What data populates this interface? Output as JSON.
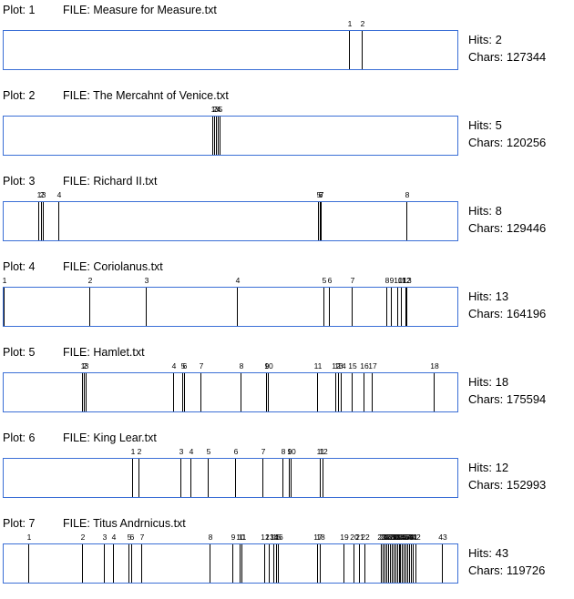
{
  "plots": [
    {
      "plot_label": "Plot: 1",
      "file_label": "FILE: Measure for Measure.txt",
      "hits": "Hits: 2",
      "chars": "Chars: 127344",
      "hit_positions": [
        0.764,
        0.792
      ],
      "tick_labels": [
        "1",
        "2"
      ]
    },
    {
      "plot_label": "Plot: 2",
      "file_label": "FILE: The Mercahnt of Venice.txt",
      "hits": "Hits: 5",
      "chars": "Chars: 120256",
      "hit_positions": [
        0.462,
        0.466,
        0.47,
        0.474,
        0.477
      ],
      "tick_labels": [
        "1",
        "2",
        "3",
        "4",
        "5"
      ]
    },
    {
      "plot_label": "Plot: 3",
      "file_label": "FILE: Richard II.txt",
      "hits": "Hits: 8",
      "chars": "Chars: 129446",
      "hit_positions": [
        0.076,
        0.082,
        0.086,
        0.12,
        0.696,
        0.699,
        0.702,
        0.892
      ],
      "tick_labels": [
        "1",
        "2",
        "3",
        "4",
        "5",
        "6",
        "7",
        "8"
      ]
    },
    {
      "plot_label": "Plot: 4",
      "file_label": "FILE: Coriolanus.txt",
      "hits": "Hits: 13",
      "chars": "Chars: 164196",
      "hit_positions": [
        0.0,
        0.19,
        0.314,
        0.516,
        0.708,
        0.72,
        0.77,
        0.846,
        0.856,
        0.87,
        0.88,
        0.89,
        0.892
      ],
      "tick_labels": [
        "1",
        "2",
        "3",
        "4",
        "5",
        "6",
        "7",
        "8",
        "9",
        "10",
        "11",
        "12",
        "13"
      ]
    },
    {
      "plot_label": "Plot: 5",
      "file_label": "FILE: Hamlet.txt",
      "hits": "Hits: 18",
      "chars": "Chars: 175594",
      "hit_positions": [
        0.174,
        0.178,
        0.182,
        0.374,
        0.396,
        0.4,
        0.436,
        0.524,
        0.58,
        0.584,
        0.694,
        0.734,
        0.74,
        0.746,
        0.77,
        0.796,
        0.814,
        0.952
      ],
      "tick_labels": [
        "1",
        "2",
        "3",
        "4",
        "5",
        "6",
        "7",
        "8",
        "9",
        "10",
        "11",
        "12",
        "13",
        "14",
        "15",
        "16",
        "17",
        "18"
      ]
    },
    {
      "plot_label": "Plot: 6",
      "file_label": "FILE: King Lear.txt",
      "hits": "Hits: 12",
      "chars": "Chars: 152993",
      "hit_positions": [
        0.284,
        0.298,
        0.392,
        0.414,
        0.452,
        0.512,
        0.572,
        0.616,
        0.632,
        0.636,
        0.7,
        0.706
      ],
      "tick_labels": [
        "1",
        "2",
        "3",
        "4",
        "5",
        "6",
        "7",
        "8",
        "9",
        "10",
        "11",
        "12"
      ]
    },
    {
      "plot_label": "Plot: 7",
      "file_label": "FILE: Titus Andrnicus.txt",
      "hits": "Hits: 43",
      "chars": "Chars: 119726",
      "hit_positions": [
        0.054,
        0.174,
        0.222,
        0.242,
        0.276,
        0.282,
        0.304,
        0.456,
        0.506,
        0.522,
        0.526,
        0.576,
        0.586,
        0.596,
        0.602,
        0.606,
        0.694,
        0.7,
        0.752,
        0.774,
        0.786,
        0.798,
        0.834,
        0.838,
        0.842,
        0.846,
        0.85,
        0.854,
        0.858,
        0.862,
        0.866,
        0.87,
        0.874,
        0.878,
        0.882,
        0.886,
        0.89,
        0.894,
        0.898,
        0.902,
        0.906,
        0.912,
        0.97
      ],
      "tick_labels": [
        "1",
        "2",
        "3",
        "4",
        "5",
        "6",
        "7",
        "8",
        "9",
        "10",
        "11",
        "12",
        "13",
        "14",
        "15",
        "16",
        "17",
        "18",
        "19",
        "20",
        "21",
        "22",
        "23",
        "24",
        "25",
        "26",
        "27",
        "28",
        "29",
        "30",
        "31",
        "32",
        "33",
        "34",
        "35",
        "36",
        "37",
        "38",
        "39",
        "40",
        "41",
        "42",
        "43"
      ]
    }
  ]
}
